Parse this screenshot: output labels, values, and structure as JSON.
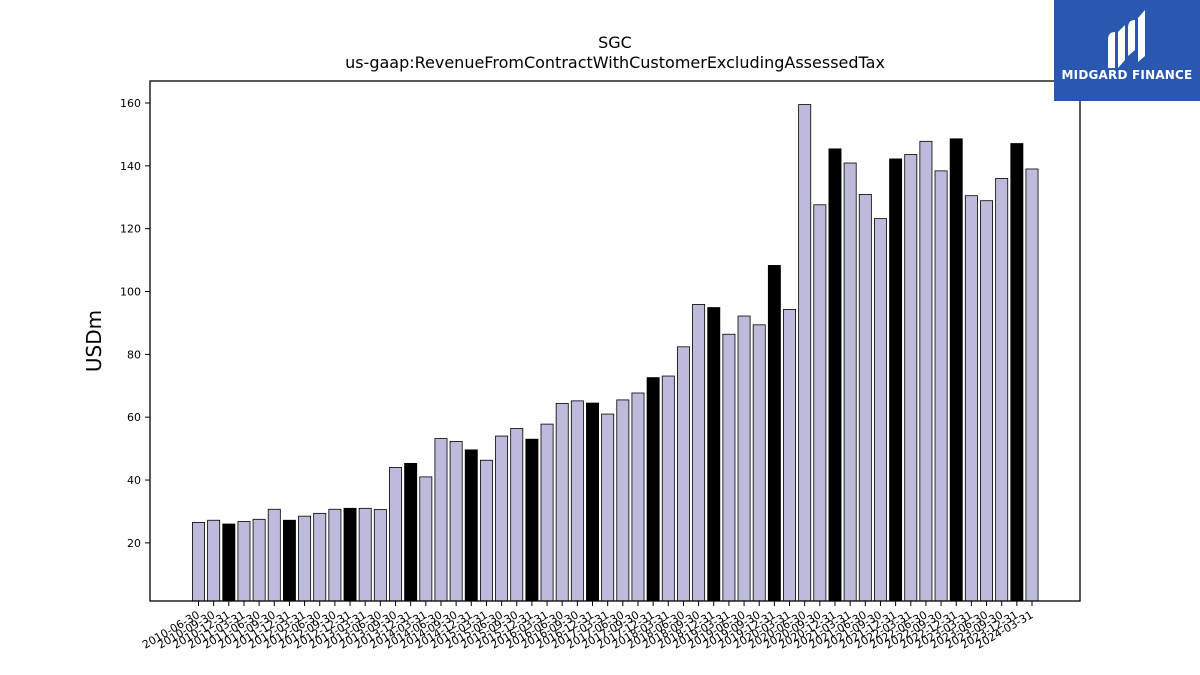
{
  "brand": {
    "name": "MIDGARD FINANCE",
    "logo_icon": "midgard-logo-icon",
    "background_color": "#2a57b0"
  },
  "chart_data": {
    "type": "bar",
    "title": "SGC",
    "subtitle": "us-gaap:RevenueFromContractWithCustomerExcludingAssessedTax",
    "xlabel": "",
    "ylabel": "USDm",
    "ylim": [
      1.5,
      167
    ],
    "yticks": [
      20,
      40,
      60,
      80,
      100,
      120,
      140,
      160
    ],
    "colors": {
      "quarter": "#bdbbdb",
      "fiscal_year_end": "#000000",
      "edge": "#000000"
    },
    "categories": [
      "2010-06-30",
      "2010-09-30",
      "2010-12-31",
      "2011-03-31",
      "2011-06-30",
      "2011-09-30",
      "2011-12-31",
      "2012-03-31",
      "2012-06-30",
      "2012-09-30",
      "2012-12-31",
      "2013-03-31",
      "2013-06-30",
      "2013-09-30",
      "2013-12-31",
      "2014-03-31",
      "2014-06-30",
      "2014-09-30",
      "2014-12-31",
      "2015-03-31",
      "2015-06-30",
      "2015-09-30",
      "2015-12-31",
      "2016-03-31",
      "2016-06-30",
      "2016-09-30",
      "2016-12-31",
      "2017-03-31",
      "2017-06-30",
      "2017-09-30",
      "2017-12-31",
      "2018-03-31",
      "2018-06-30",
      "2018-09-30",
      "2018-12-31",
      "2019-03-31",
      "2019-06-30",
      "2019-09-30",
      "2019-12-31",
      "2020-03-31",
      "2020-06-30",
      "2020-09-30",
      "2020-12-31",
      "2021-03-31",
      "2021-06-30",
      "2021-09-30",
      "2021-12-31",
      "2022-03-31",
      "2022-06-30",
      "2022-09-30",
      "2022-12-31",
      "2023-03-31",
      "2023-06-30",
      "2023-09-30",
      "2023-12-31",
      "2024-03-31"
    ],
    "values": [
      26.5,
      27.2,
      26.0,
      26.8,
      27.5,
      30.7,
      27.2,
      28.5,
      29.4,
      30.7,
      31.0,
      31.0,
      30.6,
      44.0,
      45.3,
      41.0,
      53.2,
      52.3,
      49.6,
      46.3,
      54.0,
      56.4,
      53.0,
      57.8,
      64.4,
      65.2,
      64.5,
      61.0,
      65.5,
      67.7,
      72.6,
      73.1,
      82.4,
      95.9,
      94.9,
      86.4,
      92.2,
      89.4,
      108.3,
      94.3,
      159.5,
      127.6,
      145.4,
      140.9,
      130.9,
      123.2,
      142.2,
      143.6,
      147.8,
      138.4,
      148.6,
      130.5,
      128.9,
      136.0,
      147.1,
      139.0
    ],
    "highlight_indices": [
      2,
      6,
      10,
      14,
      18,
      22,
      26,
      30,
      34,
      38,
      42,
      46,
      50,
      54
    ]
  }
}
